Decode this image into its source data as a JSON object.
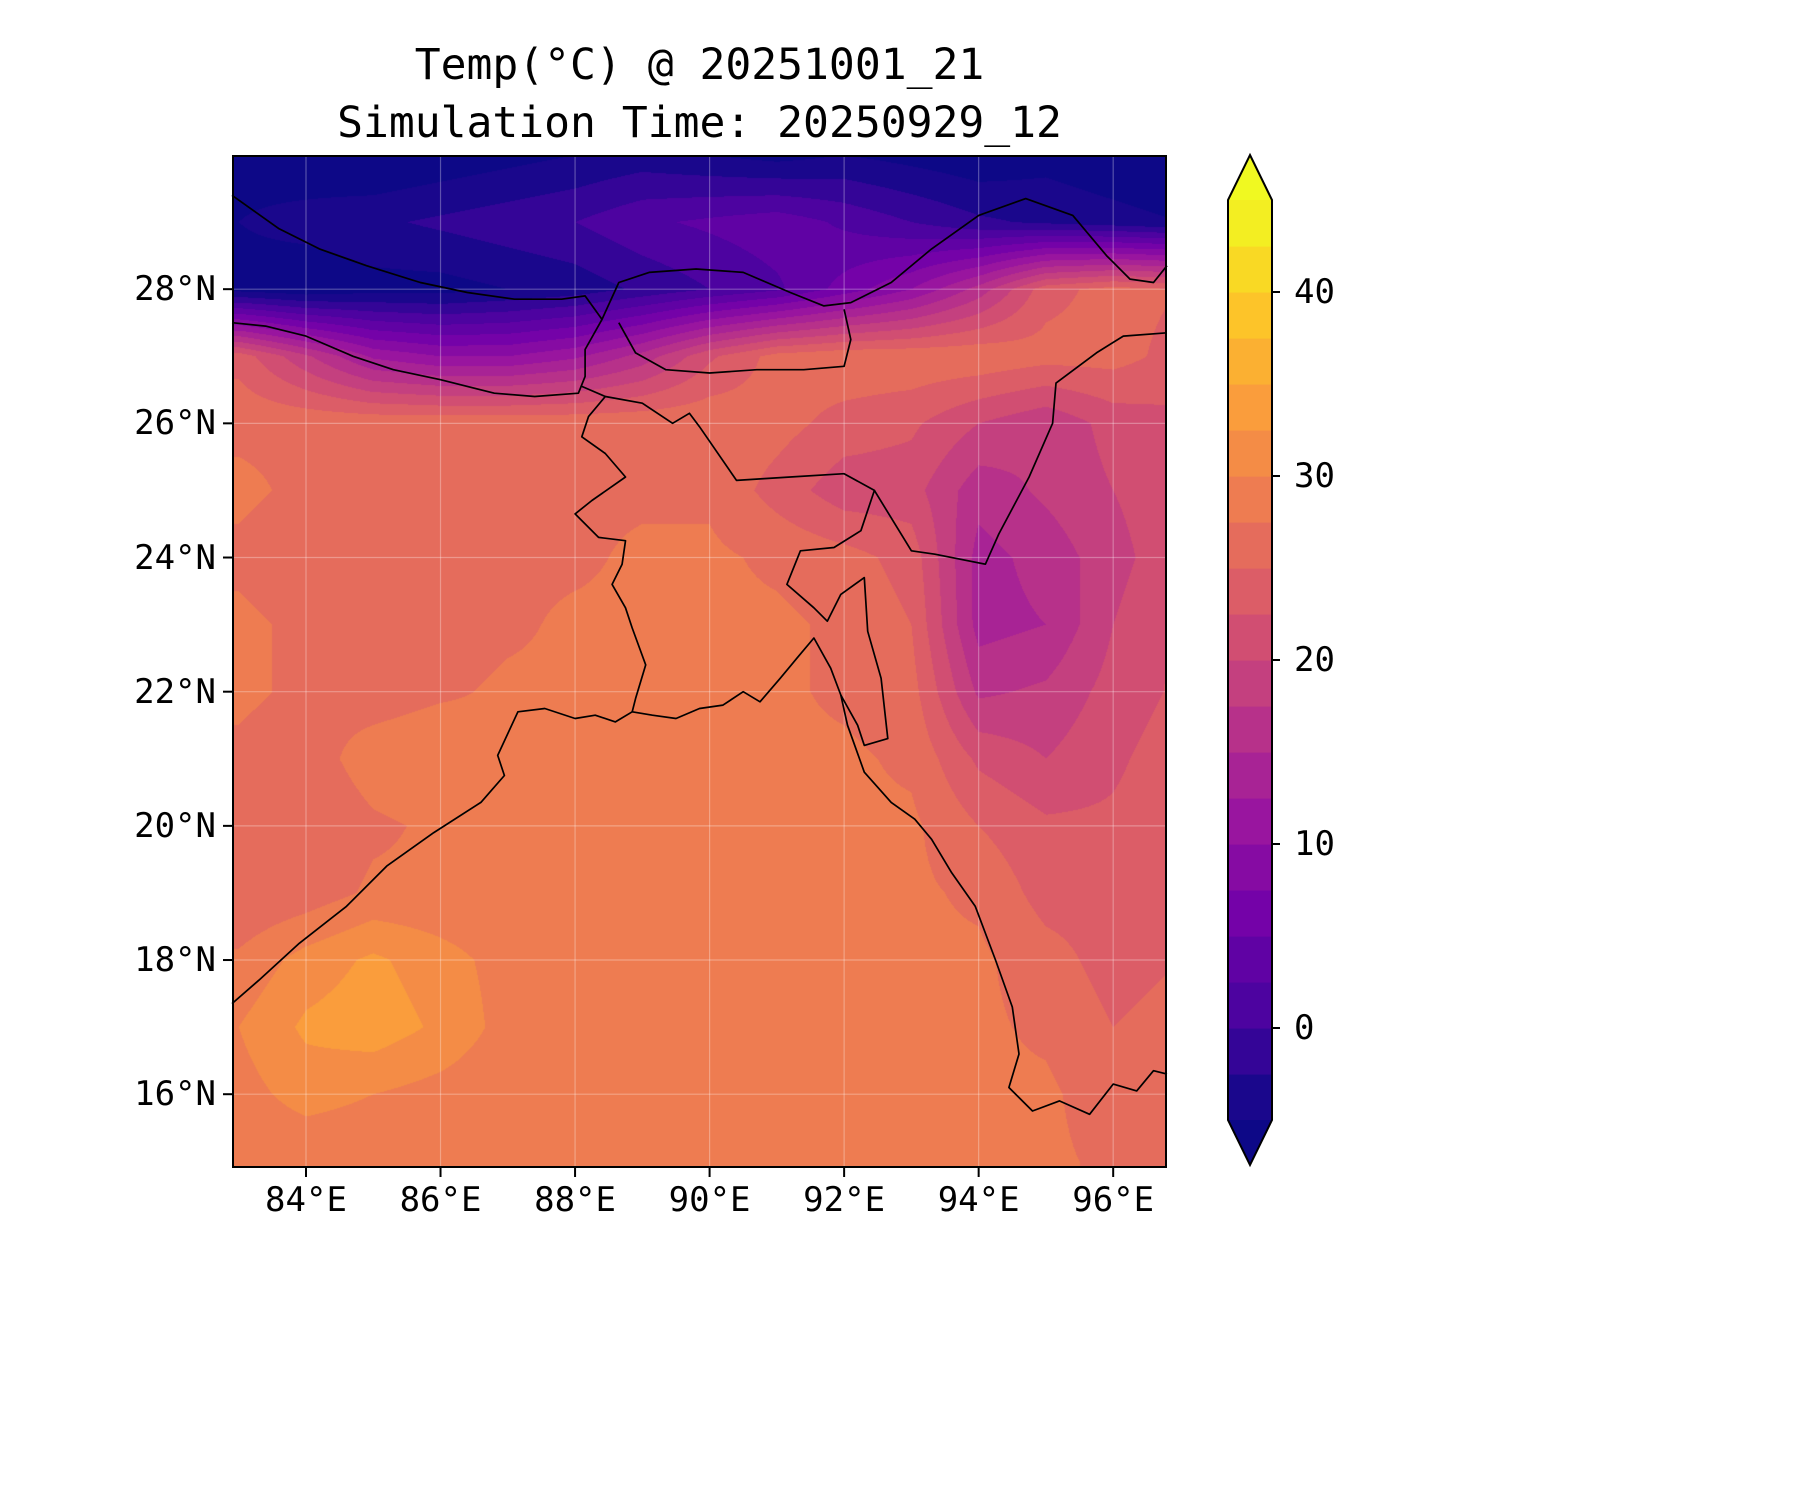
{
  "title": {
    "line1": "Temp(°C) @ 20251001_21",
    "line2": "Simulation Time: 20250929_12"
  },
  "chart_data": {
    "type": "heatmap",
    "title": "Temp(°C) @ 20251001_21",
    "subtitle": "Simulation Time: 20250929_12",
    "variable": "Temp(°C)",
    "valid_time_label": "20251001_21",
    "simulation_time_label": "20250929_12",
    "lon_range": [
      82.9,
      96.8
    ],
    "lat_range": [
      14.9,
      30.0
    ],
    "grid_lines": true,
    "legend_position": "right",
    "x_ticks": {
      "values": [
        84,
        86,
        88,
        90,
        92,
        94,
        96
      ],
      "labels": [
        "84°E",
        "86°E",
        "88°E",
        "90°E",
        "92°E",
        "94°E",
        "96°E"
      ]
    },
    "y_ticks": {
      "values": [
        16,
        18,
        20,
        22,
        24,
        26,
        28
      ],
      "labels": [
        "16°N",
        "18°N",
        "20°N",
        "22°N",
        "24°N",
        "26°N",
        "28°N"
      ]
    },
    "colorbar": {
      "vmin": -5,
      "vmax": 45,
      "level_step": 2.5,
      "extend": "both",
      "colormap": "plasma",
      "stops": [
        "#0d0887",
        "#47039f",
        "#7301a8",
        "#9c179e",
        "#bd3786",
        "#d8576b",
        "#ed7953",
        "#fa9e3b",
        "#fdc926",
        "#f0f921"
      ],
      "ticks": {
        "values": [
          0,
          10,
          20,
          30,
          40
        ],
        "labels": [
          "0",
          "10",
          "20",
          "30",
          "40"
        ]
      }
    },
    "grid": {
      "units": "°C",
      "lons": [
        83,
        84,
        85,
        86,
        87,
        88,
        89,
        90,
        91,
        92,
        93,
        94,
        95,
        96,
        97
      ],
      "lats": [
        30,
        29,
        28,
        27,
        26,
        25,
        24,
        23,
        22,
        21,
        20,
        19,
        18,
        17,
        16,
        15
      ],
      "values": [
        [
          -6,
          -7,
          -8,
          -7,
          -6,
          -5,
          -4,
          -5,
          -6,
          -5,
          -6,
          -7,
          -6,
          -7,
          -8
        ],
        [
          -5,
          -4,
          -3,
          -2,
          -1,
          0,
          2,
          3,
          4,
          2,
          0,
          -2,
          -3,
          -4,
          -5
        ],
        [
          -6,
          -7,
          -6,
          -6,
          -5,
          -4,
          -2,
          0,
          2,
          6,
          10,
          16,
          24,
          26,
          25
        ],
        [
          24,
          18,
          12,
          10,
          10,
          12,
          16,
          22,
          26,
          27,
          27,
          27,
          26,
          26,
          24
        ],
        [
          27,
          27,
          27,
          27,
          27,
          27,
          27,
          27,
          26,
          24,
          23,
          20,
          18,
          21,
          22
        ],
        [
          28,
          27,
          27,
          27,
          27,
          27,
          27,
          27,
          24,
          21,
          21,
          16,
          18,
          20,
          22
        ],
        [
          27,
          26,
          25,
          26,
          27,
          27,
          28,
          28,
          27,
          26,
          24,
          14,
          16,
          19,
          22
        ],
        [
          28,
          27,
          25,
          26,
          27,
          28,
          28,
          28,
          28,
          27,
          25,
          14,
          15,
          20,
          23
        ],
        [
          28,
          27,
          26,
          27,
          28,
          28,
          28,
          28,
          28,
          27,
          26,
          17,
          18,
          21,
          23
        ],
        [
          27,
          26,
          29,
          30,
          28,
          28,
          28,
          28,
          28,
          28,
          27,
          22,
          20,
          22,
          24
        ],
        [
          26,
          25,
          27,
          28,
          28,
          28,
          28,
          28,
          28,
          28,
          28,
          25,
          23,
          23,
          24
        ],
        [
          25,
          26,
          28,
          28,
          28,
          28,
          28,
          28,
          28,
          28,
          28,
          27,
          24,
          24,
          25
        ],
        [
          28,
          31,
          33,
          31,
          29,
          28,
          28,
          28,
          28,
          28,
          28,
          28,
          26,
          24,
          25
        ],
        [
          30,
          33,
          34,
          32,
          29,
          28,
          28,
          28,
          28,
          28,
          28,
          28,
          27,
          25,
          26
        ],
        [
          29,
          31,
          30,
          29,
          28,
          28,
          28,
          28,
          28,
          28,
          28,
          28,
          28,
          26,
          26
        ],
        [
          28,
          28,
          28,
          28,
          28,
          28,
          28,
          28,
          28,
          28,
          28,
          28,
          28,
          27,
          27
        ]
      ]
    },
    "outlines": {
      "coastline": [
        [
          82.9,
          17.35
        ],
        [
          83.3,
          17.7
        ],
        [
          83.9,
          18.25
        ],
        [
          84.6,
          18.8
        ],
        [
          85.2,
          19.4
        ],
        [
          85.9,
          19.9
        ],
        [
          86.6,
          20.35
        ],
        [
          86.95,
          20.75
        ],
        [
          86.85,
          21.05
        ],
        [
          87.15,
          21.7
        ],
        [
          87.55,
          21.75
        ],
        [
          88.0,
          21.6
        ],
        [
          88.3,
          21.65
        ],
        [
          88.6,
          21.55
        ],
        [
          88.85,
          21.7
        ],
        [
          89.15,
          21.65
        ],
        [
          89.5,
          21.6
        ],
        [
          89.85,
          21.75
        ],
        [
          90.2,
          21.8
        ],
        [
          90.5,
          22.0
        ],
        [
          90.75,
          21.85
        ],
        [
          91.05,
          22.2
        ],
        [
          91.3,
          22.5
        ],
        [
          91.55,
          22.8
        ],
        [
          91.8,
          22.35
        ],
        [
          91.95,
          21.95
        ],
        [
          92.05,
          21.5
        ],
        [
          92.3,
          20.8
        ],
        [
          92.7,
          20.35
        ],
        [
          93.05,
          20.1
        ],
        [
          93.3,
          19.8
        ],
        [
          93.6,
          19.3
        ],
        [
          93.95,
          18.8
        ],
        [
          94.25,
          18.0
        ],
        [
          94.5,
          17.3
        ],
        [
          94.6,
          16.6
        ],
        [
          94.45,
          16.1
        ],
        [
          94.8,
          15.75
        ],
        [
          95.2,
          15.9
        ],
        [
          95.65,
          15.7
        ],
        [
          96.0,
          16.15
        ],
        [
          96.35,
          16.05
        ],
        [
          96.6,
          16.35
        ],
        [
          96.8,
          16.3
        ]
      ],
      "border_himalaya": [
        [
          82.9,
          29.4
        ],
        [
          83.6,
          28.9
        ],
        [
          84.2,
          28.6
        ],
        [
          84.9,
          28.35
        ],
        [
          85.7,
          28.1
        ],
        [
          86.4,
          27.95
        ],
        [
          87.1,
          27.85
        ],
        [
          87.8,
          27.85
        ],
        [
          88.15,
          27.9
        ],
        [
          88.4,
          27.55
        ],
        [
          88.65,
          28.1
        ],
        [
          89.1,
          28.25
        ],
        [
          89.8,
          28.3
        ],
        [
          90.5,
          28.25
        ],
        [
          91.2,
          27.95
        ],
        [
          91.7,
          27.75
        ],
        [
          92.1,
          27.8
        ],
        [
          92.7,
          28.1
        ],
        [
          93.3,
          28.6
        ],
        [
          94.0,
          29.1
        ],
        [
          94.7,
          29.35
        ],
        [
          95.4,
          29.1
        ],
        [
          95.9,
          28.5
        ],
        [
          96.25,
          28.15
        ],
        [
          96.6,
          28.1
        ],
        [
          96.8,
          28.35
        ]
      ],
      "border_nepal": [
        [
          82.9,
          27.5
        ],
        [
          83.4,
          27.45
        ],
        [
          84.0,
          27.3
        ],
        [
          84.7,
          27.0
        ],
        [
          85.3,
          26.8
        ],
        [
          86.0,
          26.65
        ],
        [
          86.8,
          26.45
        ],
        [
          87.4,
          26.4
        ],
        [
          88.05,
          26.45
        ],
        [
          88.15,
          26.7
        ],
        [
          88.15,
          27.1
        ],
        [
          88.4,
          27.55
        ]
      ],
      "border_bhutan": [
        [
          88.65,
          27.5
        ],
        [
          88.9,
          27.05
        ],
        [
          89.35,
          26.8
        ],
        [
          90.0,
          26.75
        ],
        [
          90.7,
          26.8
        ],
        [
          91.4,
          26.8
        ],
        [
          92.0,
          26.85
        ],
        [
          92.1,
          27.25
        ],
        [
          92.0,
          27.7
        ]
      ],
      "border_bangladesh_west": [
        [
          88.1,
          26.55
        ],
        [
          88.45,
          26.4
        ],
        [
          88.2,
          26.1
        ],
        [
          88.1,
          25.8
        ],
        [
          88.45,
          25.55
        ],
        [
          88.75,
          25.2
        ],
        [
          88.25,
          24.85
        ],
        [
          88.0,
          24.65
        ],
        [
          88.35,
          24.3
        ],
        [
          88.75,
          24.25
        ],
        [
          88.7,
          23.9
        ],
        [
          88.55,
          23.6
        ],
        [
          88.75,
          23.25
        ],
        [
          88.85,
          22.95
        ],
        [
          89.05,
          22.4
        ],
        [
          88.9,
          21.9
        ],
        [
          88.85,
          21.7
        ]
      ],
      "border_bangladesh_east": [
        [
          88.45,
          26.4
        ],
        [
          89.0,
          26.3
        ],
        [
          89.45,
          26.0
        ],
        [
          89.7,
          26.15
        ],
        [
          89.85,
          25.95
        ],
        [
          90.4,
          25.15
        ],
        [
          91.2,
          25.2
        ],
        [
          92.0,
          25.25
        ],
        [
          92.45,
          25.0
        ],
        [
          92.25,
          24.4
        ],
        [
          91.85,
          24.15
        ],
        [
          91.35,
          24.1
        ],
        [
          91.15,
          23.6
        ],
        [
          91.55,
          23.25
        ],
        [
          91.75,
          23.05
        ],
        [
          91.95,
          23.45
        ],
        [
          92.3,
          23.7
        ],
        [
          92.35,
          22.9
        ],
        [
          92.55,
          22.2
        ],
        [
          92.65,
          21.3
        ],
        [
          92.3,
          21.2
        ],
        [
          92.2,
          21.5
        ],
        [
          91.95,
          21.95
        ]
      ],
      "border_india_myanmar": [
        [
          92.45,
          25.0
        ],
        [
          93.0,
          24.1
        ],
        [
          93.35,
          24.05
        ],
        [
          94.1,
          23.9
        ],
        [
          94.3,
          24.35
        ],
        [
          94.75,
          25.2
        ],
        [
          95.1,
          26.0
        ],
        [
          95.15,
          26.6
        ],
        [
          95.75,
          27.05
        ],
        [
          96.15,
          27.3
        ],
        [
          96.8,
          27.35
        ]
      ]
    }
  }
}
